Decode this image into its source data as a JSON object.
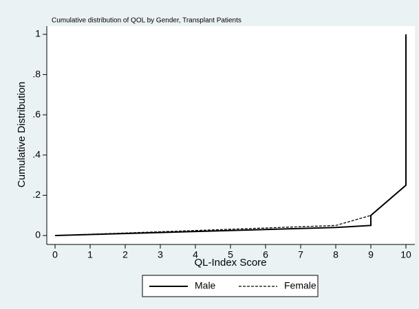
{
  "chart_data": {
    "type": "line",
    "title": "Cumulative distribution of QOL by Gender, Transplant Patients",
    "x_label": "QL-Index Score",
    "y_label": "Cumulative Distribution",
    "xlim": [
      0,
      10
    ],
    "xticks": [
      0,
      1,
      2,
      3,
      4,
      5,
      6,
      7,
      8,
      9,
      10
    ],
    "ylim": [
      0,
      1
    ],
    "yticks": [
      0,
      {
        "value": 0.2,
        "label": ".2"
      },
      {
        "value": 0.4,
        "label": ".4"
      },
      {
        "value": 0.6,
        "label": ".6"
      },
      {
        "value": 0.8,
        "label": ".8"
      },
      1
    ],
    "legend": "bottom",
    "series": [
      {
        "name": "Male",
        "color": "#000000",
        "dash": "solid",
        "x": [
          0,
          8,
          9,
          9,
          10,
          10
        ],
        "values": [
          0,
          0.04,
          0.05,
          0.1,
          0.25,
          1
        ]
      },
      {
        "name": "Female",
        "color": "#000000",
        "dash": "dashed",
        "x": [
          0,
          8,
          9,
          10,
          10
        ],
        "values": [
          0,
          0.05,
          0.1,
          0.25,
          1
        ]
      }
    ]
  }
}
